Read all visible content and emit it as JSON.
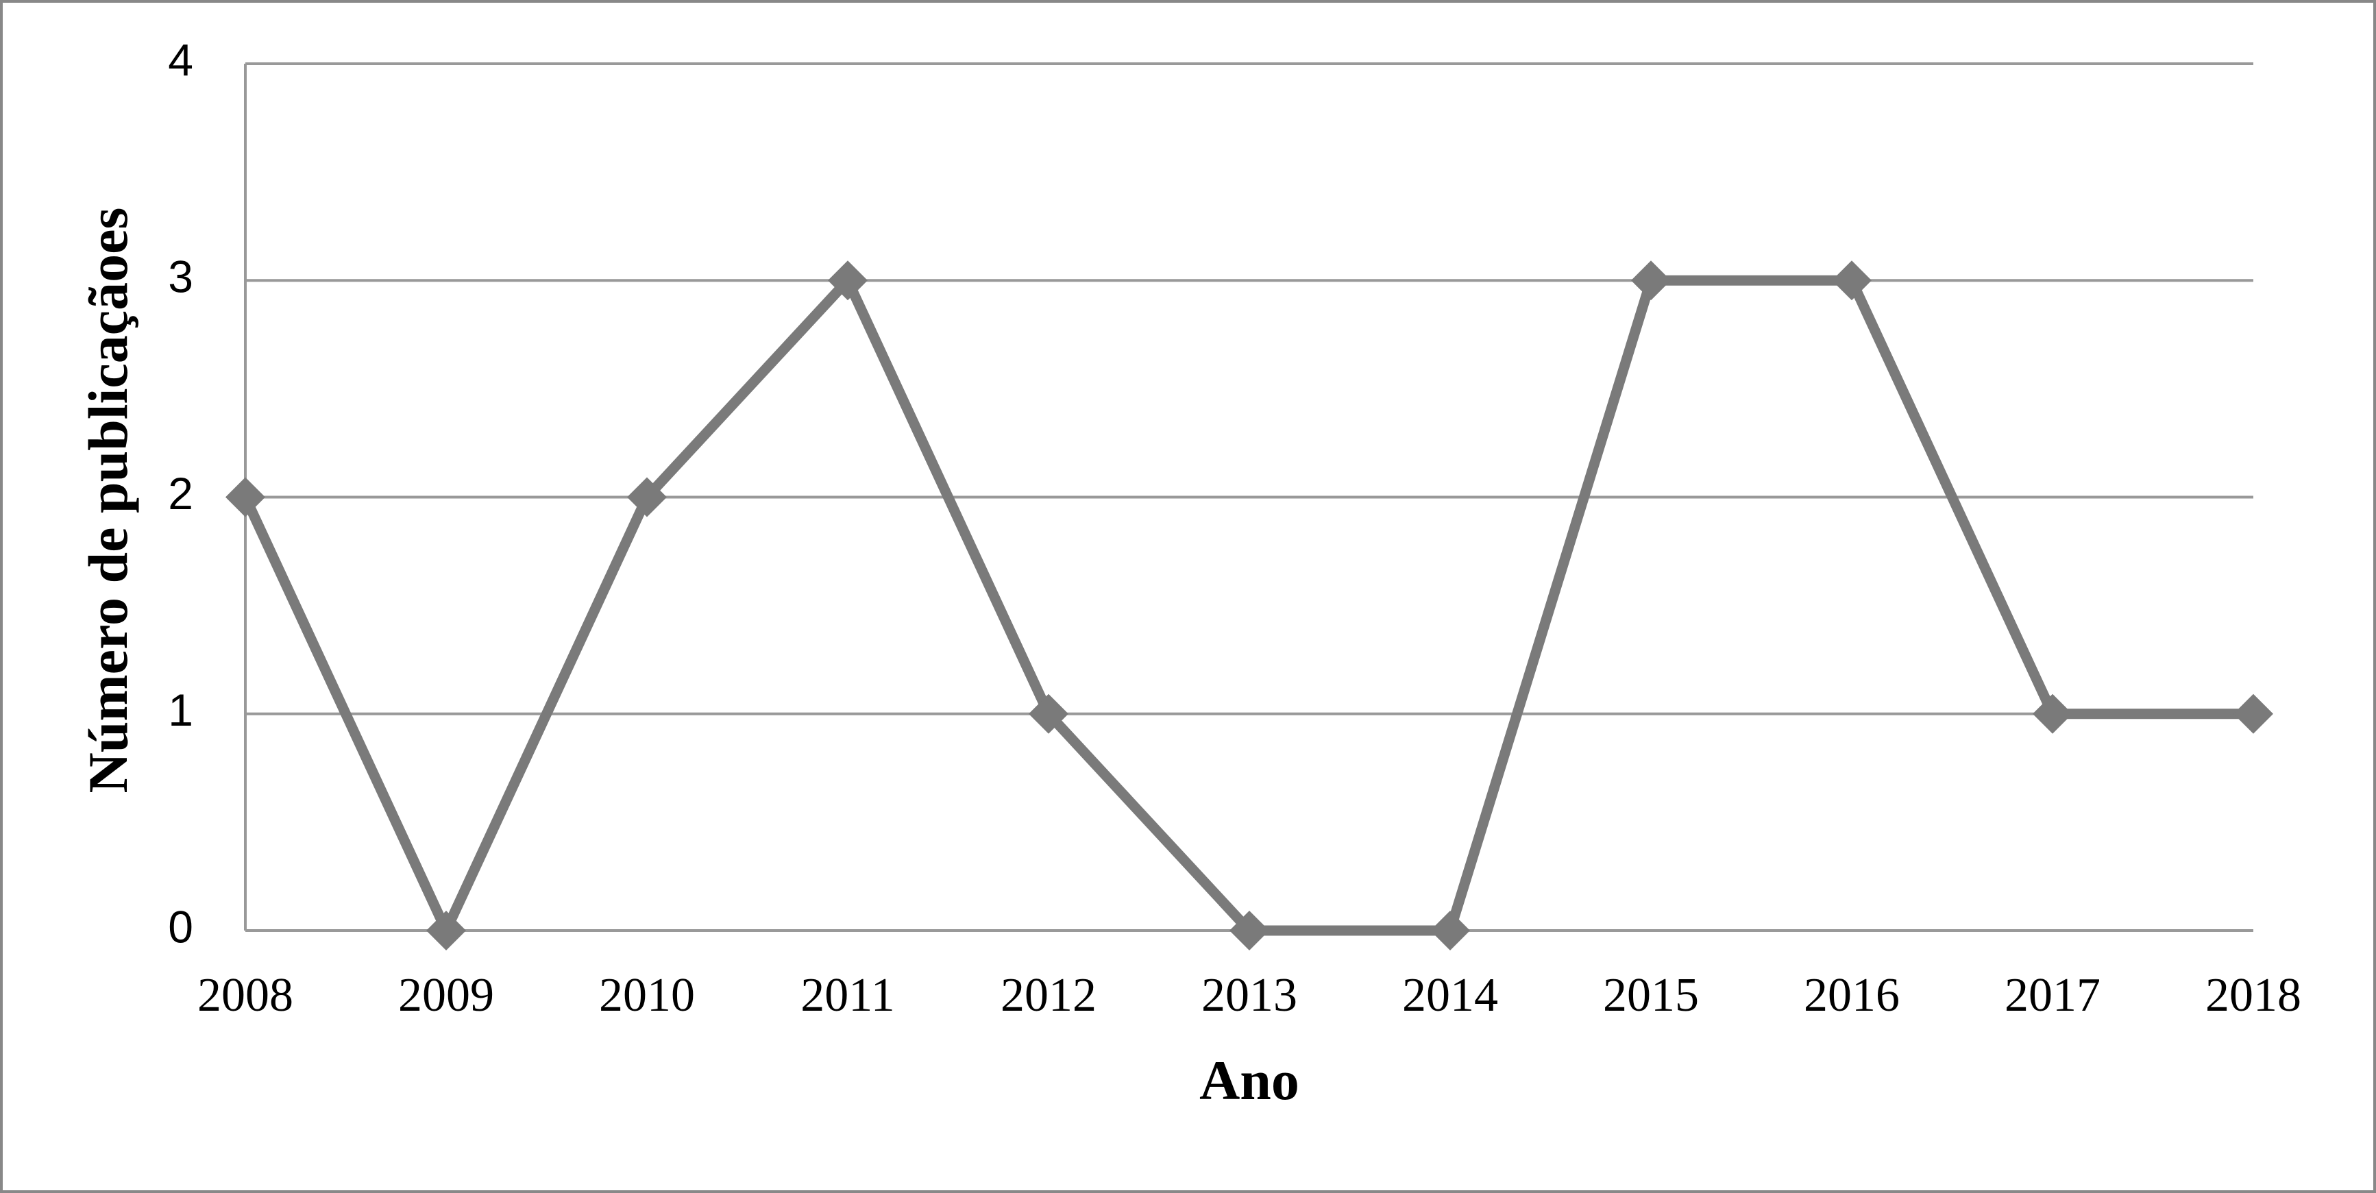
{
  "chart_data": {
    "type": "line",
    "x_label": "Ano",
    "y_label": "Número de publicaçãoes",
    "categories": [
      "2008",
      "2009",
      "2010",
      "2011",
      "2012",
      "2013",
      "2014",
      "2015",
      "2016",
      "2017",
      "2018"
    ],
    "values": [
      2,
      0,
      2,
      3,
      1,
      0,
      0,
      3,
      3,
      1,
      1
    ],
    "color": "#7a7a7a",
    "ylim": [
      0,
      4
    ],
    "yticks": [
      0,
      1,
      2,
      3,
      4
    ],
    "grid": true
  }
}
